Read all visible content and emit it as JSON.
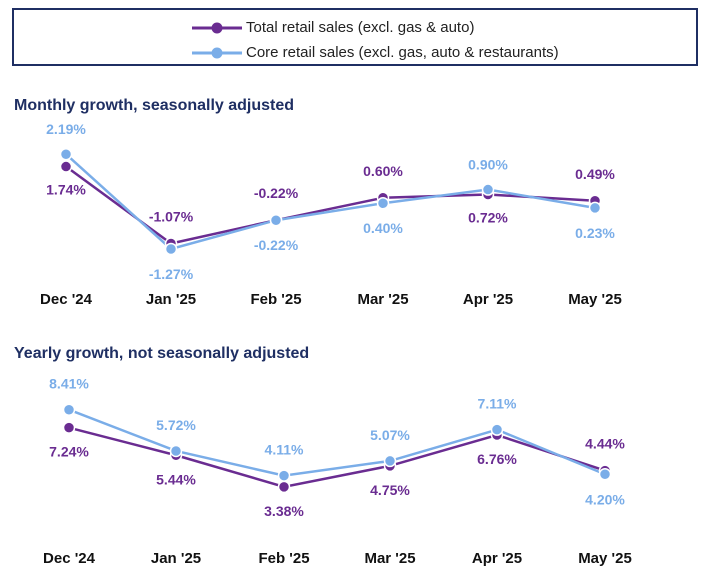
{
  "legend": {
    "items": [
      {
        "label": "Total retail sales (excl. gas & auto)",
        "color": "#6a2c91"
      },
      {
        "label": "Core retail sales (excl. gas, auto & restaurants)",
        "color": "#7aade8"
      }
    ]
  },
  "chart_data": [
    {
      "type": "line",
      "title": "Monthly growth, seasonally adjusted",
      "categories": [
        "Dec '24",
        "Jan '25",
        "Feb '25",
        "Mar '25",
        "Apr '25",
        "May '25"
      ],
      "series": [
        {
          "name": "Total retail sales (excl. gas & auto)",
          "color": "#6a2c91",
          "values": [
            1.74,
            -1.07,
            -0.22,
            0.6,
            0.72,
            0.49
          ],
          "labels": [
            "1.74%",
            "-1.07%",
            "-0.22%",
            "0.60%",
            "0.72%",
            "0.49%"
          ]
        },
        {
          "name": "Core retail sales (excl. gas, auto & restaurants)",
          "color": "#7aade8",
          "values": [
            2.19,
            -1.27,
            -0.22,
            0.4,
            0.9,
            0.23
          ],
          "labels": [
            "2.19%",
            "-1.27%",
            "-0.22%",
            "0.40%",
            "0.90%",
            "0.23%"
          ]
        }
      ],
      "ylim": [
        -1.6,
        2.6
      ]
    },
    {
      "type": "line",
      "title": "Yearly growth, not seasonally adjusted",
      "categories": [
        "Dec '24",
        "Jan '25",
        "Feb '25",
        "Mar '25",
        "Apr '25",
        "May '25"
      ],
      "series": [
        {
          "name": "Total retail sales (excl. gas & auto)",
          "color": "#6a2c91",
          "values": [
            7.24,
            5.44,
            3.38,
            4.75,
            6.76,
            4.44
          ],
          "labels": [
            "7.24%",
            "5.44%",
            "3.38%",
            "4.75%",
            "6.76%",
            "4.44%"
          ]
        },
        {
          "name": "Core retail sales (excl. gas, auto & restaurants)",
          "color": "#7aade8",
          "values": [
            8.41,
            5.72,
            4.11,
            5.07,
            7.11,
            4.2
          ],
          "labels": [
            "8.41%",
            "5.72%",
            "4.11%",
            "5.07%",
            "7.11%",
            "4.20%"
          ]
        }
      ],
      "ylim": [
        2.0,
        9.5
      ]
    }
  ]
}
